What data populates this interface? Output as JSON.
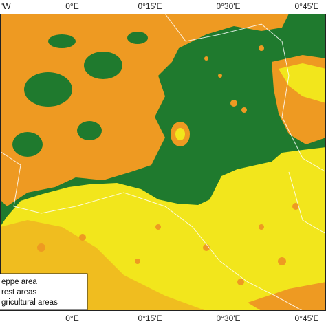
{
  "axis_labels": {
    "top": [
      "'W",
      "0°E",
      "0°15'E",
      "0°30'E",
      "0°45'E"
    ],
    "bottom": [
      "0°E",
      "0°15'E",
      "0°30'E",
      "0°45'E"
    ]
  },
  "legend": [
    "eppe area",
    "rest areas",
    "gricultural areas"
  ]
}
